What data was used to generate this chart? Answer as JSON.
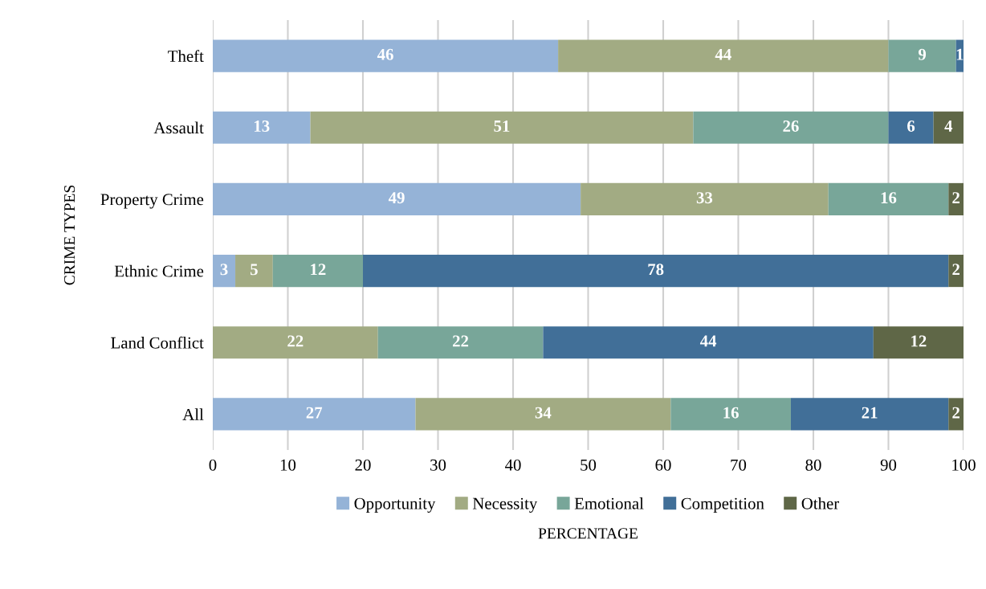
{
  "chart_data": {
    "type": "bar",
    "orientation": "horizontal",
    "stacked": true,
    "xlabel": "PERCENTAGE",
    "ylabel": "CRIME TYPES",
    "categories": [
      "Theft",
      "Assault",
      "Property Crime",
      "Ethnic Crime",
      "Land Conflict",
      "All"
    ],
    "series": [
      {
        "name": "Opportunity",
        "color": "#95b3d7",
        "values": [
          46,
          13,
          49,
          3,
          null,
          27
        ]
      },
      {
        "name": "Necessity",
        "color": "#a2ab83",
        "values": [
          44,
          51,
          33,
          5,
          22,
          34
        ]
      },
      {
        "name": "Emotional",
        "color": "#78a699",
        "values": [
          9,
          26,
          16,
          12,
          22,
          16
        ]
      },
      {
        "name": "Competition",
        "color": "#416f98",
        "values": [
          1,
          6,
          null,
          78,
          44,
          21
        ]
      },
      {
        "name": "Other",
        "color": "#5f6747",
        "values": [
          null,
          4,
          2,
          2,
          12,
          2
        ]
      }
    ],
    "xlim": [
      0,
      100
    ],
    "xticks": [
      0,
      10,
      20,
      30,
      40,
      50,
      60,
      70,
      80,
      90,
      100
    ],
    "grid": "x",
    "legend": "bottom",
    "data_labels": true
  }
}
